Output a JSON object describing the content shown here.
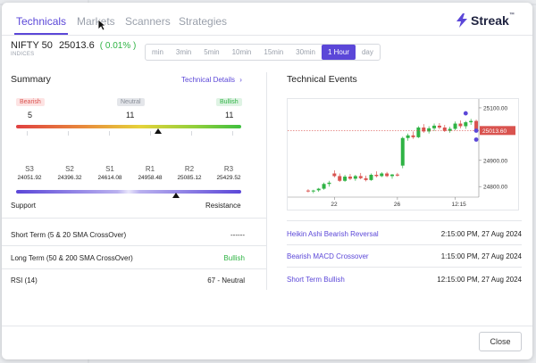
{
  "tabs": [
    {
      "label": "Technicals",
      "active": true
    },
    {
      "label": "Markets",
      "active": false
    },
    {
      "label": "Scanners",
      "active": false
    },
    {
      "label": "Strategies",
      "active": false
    }
  ],
  "brand": {
    "name": "Streak",
    "tm": "™",
    "color": "#5b47d8"
  },
  "symbol": {
    "name": "NIFTY 50",
    "price": "25013.6",
    "change": "( 0.01% )",
    "exchange": "INDICES"
  },
  "timeframes": [
    {
      "label": "min",
      "active": false
    },
    {
      "label": "3min",
      "active": false
    },
    {
      "label": "5min",
      "active": false
    },
    {
      "label": "10min",
      "active": false
    },
    {
      "label": "15min",
      "active": false
    },
    {
      "label": "30min",
      "active": false
    },
    {
      "label": "1 Hour",
      "active": true
    },
    {
      "label": "day",
      "active": false
    }
  ],
  "summary": {
    "title": "Summary",
    "details_link": "Technical Details",
    "bearish_label": "Bearish",
    "bearish_count": "5",
    "neutral_label": "Neutral",
    "neutral_count": "11",
    "bullish_label": "Bullish",
    "bullish_count": "11",
    "gauge_position": 0.63
  },
  "levels": {
    "items": [
      {
        "label": "S3",
        "value": "24051.92"
      },
      {
        "label": "S2",
        "value": "24396.32"
      },
      {
        "label": "S1",
        "value": "24614.08"
      },
      {
        "label": "R1",
        "value": "24958.48"
      },
      {
        "label": "R2",
        "value": "25085.12"
      },
      {
        "label": "R3",
        "value": "25429.52"
      }
    ],
    "support_label": "Support",
    "resistance_label": "Resistance",
    "marker_position": 0.71
  },
  "indicators": [
    {
      "label": "Short Term (5 & 20 SMA CrossOver)",
      "value": "------",
      "status": "neutral"
    },
    {
      "label": "Long Term (50 & 200 SMA CrossOver)",
      "value": "Bullish",
      "status": "bullish"
    },
    {
      "label": "RSI (14)",
      "value": "67 - Neutral",
      "status": "neutral"
    }
  ],
  "events": {
    "title": "Technical Events",
    "items": [
      {
        "name": "Heikin Ashi Bearish Reversal",
        "time": "2:15:00 PM, 27 Aug 2024"
      },
      {
        "name": "Bearish MACD Crossover",
        "time": "1:15:00 PM, 27 Aug 2024"
      },
      {
        "name": "Short Term Bullish",
        "time": "12:15:00 PM, 27 Aug 2024"
      }
    ]
  },
  "chart_data": {
    "type": "candlestick",
    "title": "",
    "y_ticks": [
      "25100.00",
      "24900.00",
      "24800.00"
    ],
    "x_ticks": [
      "22",
      "26",
      "12:15"
    ],
    "last_price_label": "25013.60",
    "ylim": [
      24760,
      25120
    ],
    "candles": [
      [
        24785,
        24790,
        24778,
        24782
      ],
      [
        24782,
        24788,
        24775,
        24785
      ],
      [
        24786,
        24795,
        24780,
        24792
      ],
      [
        24792,
        24815,
        24788,
        24810
      ],
      [
        24810,
        24822,
        24800,
        24815
      ],
      [
        24850,
        24862,
        24835,
        24840
      ],
      [
        24840,
        24850,
        24818,
        24822
      ],
      [
        24822,
        24845,
        24818,
        24838
      ],
      [
        24838,
        24848,
        24825,
        24830
      ],
      [
        24830,
        24845,
        24822,
        24840
      ],
      [
        24840,
        24852,
        24828,
        24832
      ],
      [
        24832,
        24842,
        24820,
        24825
      ],
      [
        24825,
        24850,
        24822,
        24845
      ],
      [
        24845,
        24858,
        24835,
        24840
      ],
      [
        24840,
        24855,
        24836,
        24850
      ],
      [
        24850,
        24856,
        24836,
        24840
      ],
      [
        24840,
        24848,
        24830,
        24846
      ],
      [
        24846,
        24852,
        24838,
        24842
      ],
      [
        24880,
        24990,
        24870,
        24985
      ],
      [
        24985,
        25002,
        24975,
        24995
      ],
      [
        24995,
        25010,
        24982,
        24988
      ],
      [
        24988,
        25030,
        24985,
        25025
      ],
      [
        25025,
        25038,
        25005,
        25010
      ],
      [
        25010,
        25030,
        25002,
        25022
      ],
      [
        25022,
        25040,
        25012,
        25032
      ],
      [
        25032,
        25042,
        25018,
        25025
      ],
      [
        25025,
        25035,
        25008,
        25012
      ],
      [
        25012,
        25028,
        25005,
        25020
      ],
      [
        25020,
        25048,
        25015,
        25040
      ],
      [
        25040,
        25052,
        25022,
        25030
      ],
      [
        25030,
        25050,
        25020,
        25045
      ],
      [
        25045,
        25058,
        25035,
        25050
      ],
      [
        25050,
        25055,
        25010,
        25013
      ]
    ],
    "bullish_color": "#2fb344",
    "bearish_color": "#d9534f",
    "marker_color": "#5b47d8"
  },
  "footer": {
    "close_label": "Close"
  }
}
